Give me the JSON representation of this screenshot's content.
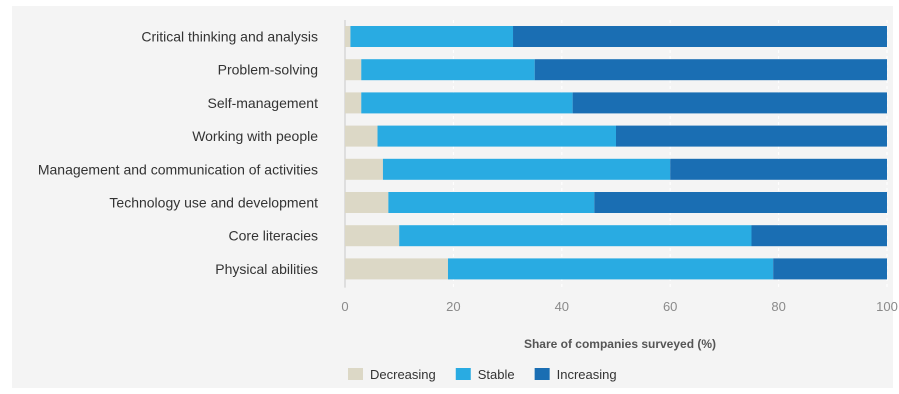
{
  "chart_data": {
    "type": "bar",
    "orientation": "horizontal",
    "stacked": true,
    "categories": [
      "Critical thinking and analysis",
      "Problem-solving",
      "Self-management",
      "Working with people",
      "Management and communication of activities",
      "Technology use and development",
      "Core literacies",
      "Physical abilities"
    ],
    "series": [
      {
        "name": "Decreasing",
        "color": "#dcd8c6",
        "values": [
          1,
          3,
          3,
          6,
          7,
          8,
          10,
          19
        ]
      },
      {
        "name": "Stable",
        "color": "#29abe2",
        "values": [
          30,
          32,
          39,
          44,
          53,
          38,
          65,
          60
        ]
      },
      {
        "name": "Increasing",
        "color": "#1a6eb3",
        "values": [
          69,
          65,
          58,
          50,
          40,
          54,
          25,
          21
        ]
      }
    ],
    "xlabel": "Share of companies surveyed (%)",
    "xlim": [
      0,
      100
    ],
    "xticks": [
      "0",
      "20",
      "40",
      "60",
      "80",
      "100"
    ],
    "grid": true,
    "legend_position": "bottom"
  }
}
